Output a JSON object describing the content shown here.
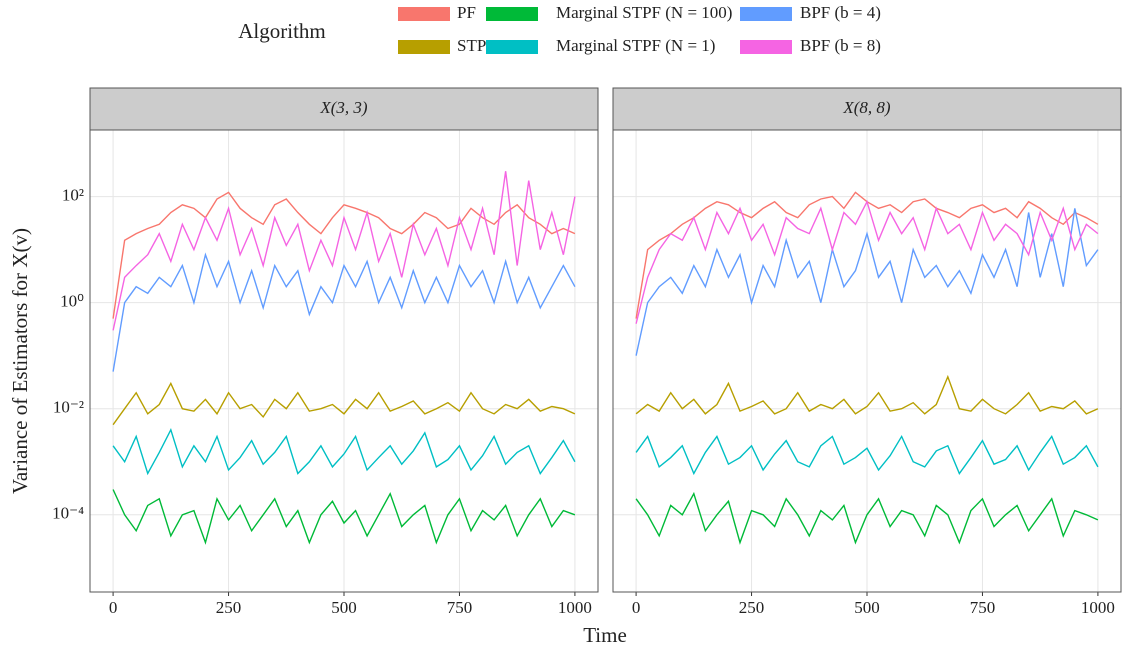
{
  "legend_title": "Algorithm",
  "x_label": "Time",
  "y_label": "Variance of Estimators for X(v)",
  "chart_data": [
    {
      "type": "line",
      "title": "X(3, 3)",
      "log_scale": true,
      "grid": true,
      "xlim": [
        -50,
        1050
      ],
      "xticks": [
        0,
        250,
        500,
        750,
        1000
      ],
      "ylim": [
        3.5e-06,
        1800
      ],
      "yticks": [
        {
          "value": 0.0001,
          "label": "10⁻⁴"
        },
        {
          "value": 0.01,
          "label": "10⁻²"
        },
        {
          "value": 1,
          "label": "10⁰"
        },
        {
          "value": 100,
          "label": "10²"
        }
      ],
      "x": [
        0,
        25,
        50,
        75,
        100,
        125,
        150,
        175,
        200,
        225,
        250,
        275,
        300,
        325,
        350,
        375,
        400,
        425,
        450,
        475,
        500,
        525,
        550,
        575,
        600,
        625,
        650,
        675,
        700,
        725,
        750,
        775,
        800,
        825,
        850,
        875,
        900,
        925,
        950,
        975,
        1000
      ],
      "series": [
        {
          "name": "PF",
          "color": "#F8766D",
          "values": [
            0.5,
            15,
            20,
            25,
            30,
            50,
            70,
            60,
            40,
            90,
            120,
            60,
            40,
            30,
            70,
            90,
            50,
            30,
            20,
            40,
            70,
            60,
            50,
            40,
            25,
            20,
            30,
            50,
            40,
            25,
            30,
            60,
            40,
            30,
            50,
            70,
            40,
            30,
            20,
            25,
            20
          ]
        },
        {
          "name": "STPF",
          "color": "#B79F00",
          "values": [
            0.005,
            0.01,
            0.02,
            0.008,
            0.012,
            0.03,
            0.01,
            0.009,
            0.015,
            0.008,
            0.02,
            0.01,
            0.012,
            0.007,
            0.015,
            0.01,
            0.02,
            0.009,
            0.01,
            0.012,
            0.008,
            0.015,
            0.01,
            0.02,
            0.009,
            0.011,
            0.014,
            0.008,
            0.01,
            0.013,
            0.009,
            0.02,
            0.01,
            0.008,
            0.012,
            0.01,
            0.015,
            0.009,
            0.011,
            0.01,
            0.008
          ]
        },
        {
          "name": "Marginal STPF (N = 100)",
          "color": "#00BA38",
          "values": [
            0.0003,
            0.0001,
            5e-05,
            0.00015,
            0.0002,
            4e-05,
            0.0001,
            0.00012,
            3e-05,
            0.0002,
            8e-05,
            0.00015,
            5e-05,
            0.0001,
            0.0002,
            6e-05,
            0.00012,
            3e-05,
            0.0001,
            0.00018,
            7e-05,
            0.00012,
            4e-05,
            0.0001,
            0.00025,
            6e-05,
            0.0001,
            0.00015,
            3e-05,
            0.0001,
            0.0002,
            5e-05,
            0.00012,
            8e-05,
            0.00015,
            4e-05,
            0.0001,
            0.0002,
            6e-05,
            0.00012,
            0.0001
          ]
        },
        {
          "name": "Marginal STPF (N = 1)",
          "color": "#00BFC4",
          "values": [
            0.002,
            0.001,
            0.003,
            0.0006,
            0.0015,
            0.004,
            0.0008,
            0.002,
            0.001,
            0.003,
            0.0007,
            0.0012,
            0.0025,
            0.0009,
            0.0015,
            0.003,
            0.0006,
            0.001,
            0.002,
            0.0008,
            0.0014,
            0.003,
            0.0007,
            0.0012,
            0.002,
            0.0009,
            0.0016,
            0.0035,
            0.0008,
            0.0011,
            0.002,
            0.0007,
            0.0013,
            0.003,
            0.0009,
            0.0015,
            0.002,
            0.0006,
            0.0012,
            0.0025,
            0.001
          ]
        },
        {
          "name": "BPF (b = 4)",
          "color": "#619CFF",
          "values": [
            0.05,
            1,
            2,
            1.5,
            3,
            2,
            5,
            1,
            8,
            2,
            6,
            1,
            4,
            0.8,
            5,
            2,
            4,
            0.6,
            2,
            1,
            5,
            2,
            6,
            1,
            3,
            0.8,
            4,
            1,
            3,
            1,
            5,
            2,
            4,
            1,
            6,
            1,
            3,
            0.8,
            2,
            5,
            2
          ]
        },
        {
          "name": "BPF (b = 8)",
          "color": "#F564E3",
          "values": [
            0.3,
            3,
            5,
            8,
            20,
            6,
            30,
            10,
            40,
            15,
            60,
            8,
            25,
            5,
            40,
            12,
            30,
            4,
            15,
            5,
            40,
            10,
            50,
            6,
            20,
            3,
            30,
            8,
            25,
            5,
            40,
            10,
            60,
            8,
            300,
            5,
            200,
            10,
            50,
            8,
            100
          ]
        }
      ]
    },
    {
      "type": "line",
      "title": "X(8, 8)",
      "log_scale": true,
      "grid": true,
      "xlim": [
        -50,
        1050
      ],
      "xticks": [
        0,
        250,
        500,
        750,
        1000
      ],
      "ylim": [
        3.5e-06,
        1800
      ],
      "yticks": [
        {
          "value": 0.0001,
          "label": "10⁻⁴"
        },
        {
          "value": 0.01,
          "label": "10⁻²"
        },
        {
          "value": 1,
          "label": "10⁰"
        },
        {
          "value": 100,
          "label": "10²"
        }
      ],
      "x": [
        0,
        25,
        50,
        75,
        100,
        125,
        150,
        175,
        200,
        225,
        250,
        275,
        300,
        325,
        350,
        375,
        400,
        425,
        450,
        475,
        500,
        525,
        550,
        575,
        600,
        625,
        650,
        675,
        700,
        725,
        750,
        775,
        800,
        825,
        850,
        875,
        900,
        925,
        950,
        975,
        1000
      ],
      "series": [
        {
          "name": "PF",
          "color": "#F8766D",
          "values": [
            0.5,
            10,
            15,
            20,
            30,
            40,
            60,
            80,
            70,
            50,
            40,
            60,
            80,
            50,
            40,
            70,
            90,
            100,
            60,
            120,
            80,
            60,
            70,
            50,
            80,
            90,
            60,
            50,
            40,
            60,
            70,
            50,
            60,
            40,
            80,
            60,
            40,
            30,
            50,
            40,
            30
          ]
        },
        {
          "name": "STPF",
          "color": "#B79F00",
          "values": [
            0.008,
            0.012,
            0.009,
            0.02,
            0.01,
            0.015,
            0.008,
            0.012,
            0.03,
            0.009,
            0.011,
            0.014,
            0.008,
            0.01,
            0.02,
            0.009,
            0.012,
            0.01,
            0.015,
            0.008,
            0.011,
            0.02,
            0.009,
            0.01,
            0.013,
            0.008,
            0.012,
            0.04,
            0.01,
            0.009,
            0.015,
            0.01,
            0.008,
            0.012,
            0.02,
            0.009,
            0.011,
            0.01,
            0.014,
            0.008,
            0.01
          ]
        },
        {
          "name": "Marginal STPF (N = 100)",
          "color": "#00BA38",
          "values": [
            0.0002,
            0.0001,
            4e-05,
            0.00015,
            0.0001,
            0.00025,
            5e-05,
            0.0001,
            0.00018,
            3e-05,
            0.00012,
            0.0001,
            6e-05,
            0.0002,
            0.0001,
            4e-05,
            0.00012,
            8e-05,
            0.00015,
            3e-05,
            0.0001,
            0.0002,
            6e-05,
            0.00012,
            0.0001,
            4e-05,
            0.00015,
            0.0001,
            3e-05,
            0.00012,
            0.0002,
            6e-05,
            0.0001,
            0.00015,
            5e-05,
            0.0001,
            0.0002,
            4e-05,
            0.00012,
            0.0001,
            8e-05
          ]
        },
        {
          "name": "Marginal STPF (N = 1)",
          "color": "#00BFC4",
          "values": [
            0.0015,
            0.003,
            0.0008,
            0.0012,
            0.002,
            0.0006,
            0.0015,
            0.003,
            0.0009,
            0.0012,
            0.002,
            0.0007,
            0.0014,
            0.0025,
            0.001,
            0.0008,
            0.002,
            0.003,
            0.0009,
            0.0012,
            0.0018,
            0.0007,
            0.0013,
            0.003,
            0.001,
            0.0008,
            0.0016,
            0.002,
            0.0006,
            0.0012,
            0.0025,
            0.0009,
            0.0011,
            0.002,
            0.0007,
            0.0015,
            0.003,
            0.0009,
            0.0012,
            0.002,
            0.0008
          ]
        },
        {
          "name": "BPF (b = 4)",
          "color": "#619CFF",
          "values": [
            0.1,
            1,
            2,
            3,
            1.5,
            5,
            2,
            10,
            3,
            8,
            1,
            5,
            2,
            15,
            3,
            6,
            1,
            10,
            2,
            4,
            20,
            3,
            6,
            1,
            10,
            3,
            5,
            2,
            4,
            1.5,
            8,
            3,
            10,
            2,
            50,
            3,
            20,
            2,
            60,
            5,
            10
          ]
        },
        {
          "name": "BPF (b = 8)",
          "color": "#F564E3",
          "values": [
            0.4,
            3,
            10,
            20,
            15,
            40,
            10,
            50,
            20,
            60,
            15,
            30,
            8,
            40,
            25,
            20,
            60,
            10,
            50,
            30,
            80,
            15,
            50,
            20,
            40,
            10,
            60,
            20,
            30,
            10,
            50,
            15,
            30,
            20,
            8,
            50,
            15,
            60,
            10,
            30,
            20
          ]
        }
      ]
    }
  ]
}
